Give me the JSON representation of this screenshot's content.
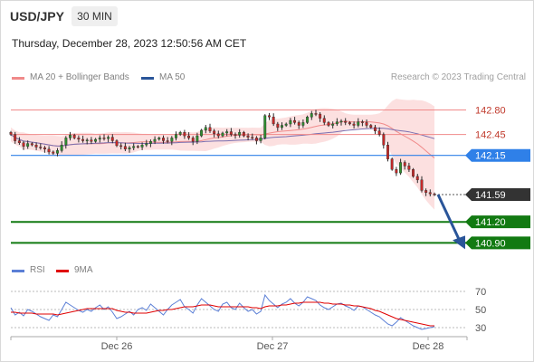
{
  "header": {
    "symbol": "USD/JPY",
    "timeframe": "30 MIN",
    "datetime": "Thursday, December 28, 2023 12:50:56 AM CET"
  },
  "legend": {
    "ma20": {
      "label": "MA 20 + Bollinger Bands",
      "color": "#f08a8a"
    },
    "ma50": {
      "label": "MA 50",
      "color": "#2a5599"
    }
  },
  "credit": "Research © 2023 Trading Central",
  "rsi_legend": {
    "rsi": {
      "label": "RSI",
      "color": "#5b7fd6"
    },
    "ma9": {
      "label": "9MA",
      "color": "#e00000"
    }
  },
  "chart_data": {
    "type": "candlestick",
    "price_axis": {
      "min": 140.62,
      "max": 143.13
    },
    "x_labels": [
      "Dec 26",
      "Dec 27",
      "Dec 28"
    ],
    "levels": [
      {
        "label": "142.80",
        "value": 142.8,
        "kind": "resistance",
        "color": "#f08a8a"
      },
      {
        "label": "142.45",
        "value": 142.45,
        "kind": "resistance",
        "color": "#f08a8a"
      },
      {
        "label": "142.15",
        "value": 142.15,
        "kind": "pivot",
        "color": "#2f80e8"
      },
      {
        "label": "141.59",
        "value": 141.59,
        "kind": "last",
        "color": "#333333"
      },
      {
        "label": "141.20",
        "value": 141.2,
        "kind": "target",
        "color": "#127a12"
      },
      {
        "label": "140.90",
        "value": 140.9,
        "kind": "target",
        "color": "#127a12"
      }
    ],
    "forecast_arrow": {
      "from": 141.59,
      "to": 140.9
    },
    "close": [
      142.45,
      142.36,
      142.33,
      142.28,
      142.32,
      142.3,
      142.27,
      142.26,
      142.24,
      142.2,
      142.18,
      142.22,
      142.3,
      142.4,
      142.44,
      142.4,
      142.38,
      142.36,
      142.37,
      142.35,
      142.38,
      142.4,
      142.39,
      142.41,
      142.36,
      142.29,
      142.28,
      142.24,
      142.26,
      142.28,
      142.27,
      142.3,
      142.32,
      142.35,
      142.38,
      142.4,
      142.36,
      142.35,
      142.4,
      142.45,
      142.48,
      142.43,
      142.4,
      142.35,
      142.43,
      142.51,
      142.55,
      142.5,
      142.46,
      142.43,
      142.47,
      142.49,
      142.45,
      142.44,
      142.48,
      142.43,
      142.41,
      142.4,
      142.36,
      142.4,
      142.72,
      142.7,
      142.6,
      142.55,
      142.58,
      142.6,
      142.65,
      142.62,
      142.58,
      142.62,
      142.7,
      142.75,
      142.74,
      142.68,
      142.62,
      142.58,
      142.6,
      142.63,
      142.64,
      142.62,
      142.6,
      142.58,
      142.63,
      142.62,
      142.58,
      142.55,
      142.5,
      142.45,
      142.3,
      142.1,
      141.95,
      141.9,
      142.05,
      142.0,
      141.95,
      141.85,
      141.8,
      141.65,
      141.62,
      141.6,
      141.59
    ],
    "rsi": {
      "axis": {
        "min": 20,
        "max": 80
      },
      "ticks": [
        "70",
        "50",
        "30"
      ],
      "rsi": [
        52,
        44,
        47,
        43,
        50,
        48,
        45,
        42,
        40,
        38,
        44,
        42,
        50,
        58,
        55,
        52,
        49,
        47,
        50,
        48,
        52,
        55,
        50,
        53,
        47,
        40,
        42,
        45,
        48,
        44,
        50,
        52,
        49,
        56,
        52,
        48,
        44,
        50,
        55,
        58,
        61,
        53,
        50,
        46,
        55,
        62,
        58,
        54,
        50,
        48,
        56,
        58,
        52,
        50,
        57,
        52,
        48,
        50,
        45,
        48,
        66,
        60,
        56,
        52,
        56,
        58,
        62,
        57,
        54,
        58,
        64,
        62,
        60,
        55,
        52,
        50,
        53,
        56,
        57,
        54,
        52,
        49,
        54,
        53,
        50,
        47,
        44,
        42,
        38,
        34,
        32,
        36,
        41,
        38,
        35,
        32,
        30,
        28,
        29,
        30,
        31
      ],
      "ma9": [
        47,
        47,
        46,
        46,
        46,
        46,
        45,
        45,
        45,
        45,
        45,
        44,
        45,
        46,
        47,
        48,
        49,
        50,
        51,
        51,
        51,
        51,
        51,
        51,
        51,
        49,
        48,
        47,
        47,
        46,
        46,
        46,
        46,
        47,
        48,
        49,
        49,
        50,
        50,
        51,
        52,
        53,
        53,
        53,
        54,
        55,
        55,
        55,
        54,
        53,
        53,
        53,
        53,
        53,
        53,
        53,
        53,
        52,
        52,
        51,
        53,
        54,
        54,
        54,
        55,
        55,
        56,
        57,
        57,
        58,
        58,
        58,
        58,
        58,
        57,
        57,
        56,
        56,
        56,
        55,
        55,
        54,
        54,
        53,
        52,
        51,
        49,
        48,
        46,
        44,
        42,
        40,
        39,
        38,
        37,
        36,
        35,
        34,
        33,
        32,
        32
      ]
    }
  }
}
